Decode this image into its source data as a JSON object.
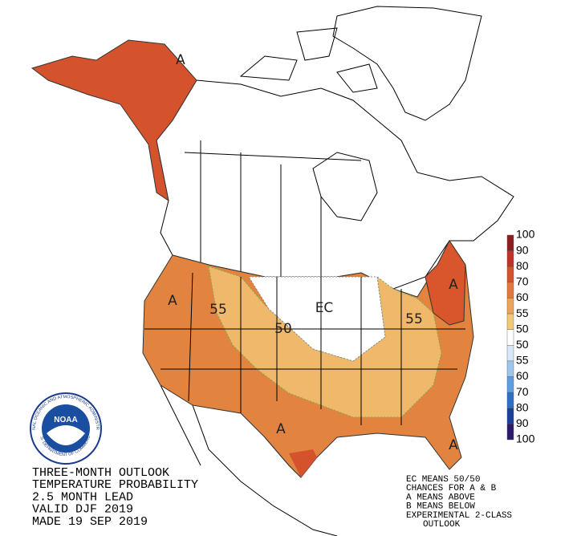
{
  "title_lines": [
    "THREE-MONTH OUTLOOK",
    "TEMPERATURE PROBABILITY",
    "2.5 MONTH LEAD",
    "VALID DJF 2019",
    "MADE 19 SEP 2019"
  ],
  "notes": [
    "EC MEANS 50/50",
    "CHANCES FOR A & B",
    "A MEANS ABOVE",
    "B MEANS BELOW",
    "EXPERIMENTAL 2-CLASS",
    "OUTLOOK"
  ],
  "legend": {
    "labels": [
      100,
      90,
      80,
      70,
      60,
      55,
      50,
      50,
      55,
      60,
      70,
      80,
      90,
      100
    ],
    "colors": [
      "#8a1f22",
      "#c2302a",
      "#d4522c",
      "#e2783d",
      "#eba45a",
      "#f2c979",
      "#ffffff",
      "#d8e8f8",
      "#9cc6ee",
      "#5c9ee0",
      "#2f6fc6",
      "#1c3f99",
      "#2e1a6b"
    ]
  },
  "map_labels": [
    "A",
    "A",
    "55",
    "50",
    "EC",
    "55",
    "A",
    "A",
    "A"
  ],
  "logo": {
    "name": "NOAA",
    "arc_top": "NATIONAL OCEANIC AND ATMOSPHERIC ADMINISTRATION",
    "arc_bottom": "U.S. DEPARTMENT OF COMMERCE"
  }
}
